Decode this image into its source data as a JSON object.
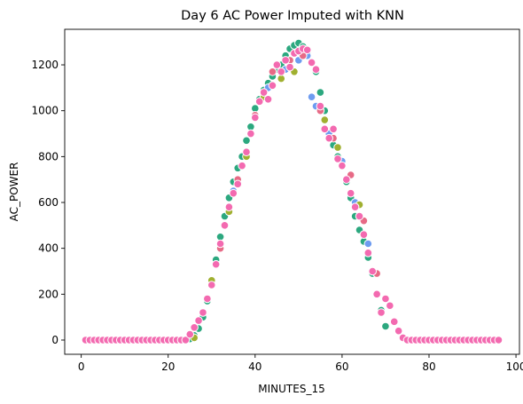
{
  "chart_data": {
    "type": "scatter",
    "title": "Day 6 AC Power Imputed with KNN",
    "xlabel": "MINUTES_15",
    "ylabel": "AC_POWER",
    "xlim": [
      -3.8,
      100.8
    ],
    "ylim": [
      -62,
      1355
    ],
    "xticks": [
      0,
      20,
      40,
      60,
      80,
      100
    ],
    "yticks": [
      0,
      200,
      400,
      600,
      800,
      1000,
      1200
    ],
    "grid": false,
    "legend": "none",
    "marker": "circle",
    "series": [
      {
        "color": "#2ca87f",
        "x": [
          25,
          26,
          27,
          28,
          29,
          30,
          31,
          32,
          33,
          34,
          35,
          36,
          37,
          38,
          39,
          40,
          41,
          42,
          43,
          44,
          45,
          46,
          47,
          48,
          49,
          50,
          51,
          52,
          53,
          54,
          55,
          56,
          57,
          58,
          59,
          60,
          61,
          62,
          63,
          64,
          65,
          66,
          67,
          68,
          69,
          70
        ],
        "y": [
          5,
          20,
          50,
          100,
          170,
          240,
          350,
          450,
          540,
          620,
          690,
          750,
          800,
          870,
          930,
          1010,
          1050,
          1090,
          1120,
          1150,
          1180,
          1200,
          1240,
          1270,
          1285,
          1295,
          1280,
          1250,
          1210,
          1170,
          1080,
          1000,
          900,
          850,
          800,
          760,
          690,
          620,
          540,
          480,
          430,
          360,
          290,
          200,
          130,
          60
        ]
      },
      {
        "color": "#6e9cf0",
        "x": [
          31,
          35,
          39,
          43,
          47,
          50,
          52,
          53,
          54,
          57,
          60,
          63,
          66
        ],
        "y": [
          330,
          650,
          900,
          1100,
          1180,
          1220,
          1240,
          1060,
          1020,
          900,
          780,
          600,
          420
        ]
      },
      {
        "color": "#e76a86",
        "x": [
          32,
          36,
          40,
          44,
          48,
          51,
          55,
          58,
          62,
          65,
          68
        ],
        "y": [
          400,
          700,
          980,
          1170,
          1220,
          1240,
          1000,
          880,
          720,
          520,
          290
        ]
      },
      {
        "color": "#a0b030",
        "x": [
          26,
          30,
          34,
          38,
          42,
          46,
          49,
          56,
          59,
          64
        ],
        "y": [
          10,
          260,
          560,
          800,
          1060,
          1140,
          1170,
          960,
          840,
          590
        ]
      },
      {
        "color": "#f36ab0",
        "x": [
          1,
          2,
          3,
          4,
          5,
          6,
          7,
          8,
          9,
          10,
          11,
          12,
          13,
          14,
          15,
          16,
          17,
          18,
          19,
          20,
          21,
          22,
          23,
          24,
          25,
          26,
          27,
          28,
          29,
          30,
          31,
          32,
          33,
          34,
          35,
          36,
          37,
          38,
          39,
          40,
          41,
          42,
          43,
          44,
          45,
          46,
          47,
          48,
          49,
          50,
          51,
          52,
          53,
          54,
          55,
          56,
          57,
          58,
          59,
          60,
          61,
          62,
          63,
          64,
          65,
          66,
          67,
          68,
          69,
          70,
          71,
          72,
          73,
          74,
          75,
          76,
          77,
          78,
          79,
          80,
          81,
          82,
          83,
          84,
          85,
          86,
          87,
          88,
          89,
          90,
          91,
          92,
          93,
          94,
          95,
          96
        ],
        "y": [
          0,
          0,
          0,
          0,
          0,
          0,
          0,
          0,
          0,
          0,
          0,
          0,
          0,
          0,
          0,
          0,
          0,
          0,
          0,
          0,
          0,
          0,
          0,
          0,
          25,
          55,
          85,
          120,
          180,
          240,
          330,
          420,
          500,
          580,
          640,
          680,
          760,
          820,
          900,
          970,
          1040,
          1080,
          1050,
          1110,
          1200,
          1170,
          1220,
          1190,
          1250,
          1260,
          1270,
          1265,
          1210,
          1180,
          1020,
          920,
          880,
          920,
          790,
          760,
          700,
          640,
          580,
          540,
          460,
          380,
          300,
          200,
          120,
          180,
          150,
          80,
          40,
          10,
          0,
          0,
          0,
          0,
          0,
          0,
          0,
          0,
          0,
          0,
          0,
          0,
          0,
          0,
          0,
          0,
          0,
          0,
          0,
          0,
          0,
          0
        ]
      }
    ]
  }
}
